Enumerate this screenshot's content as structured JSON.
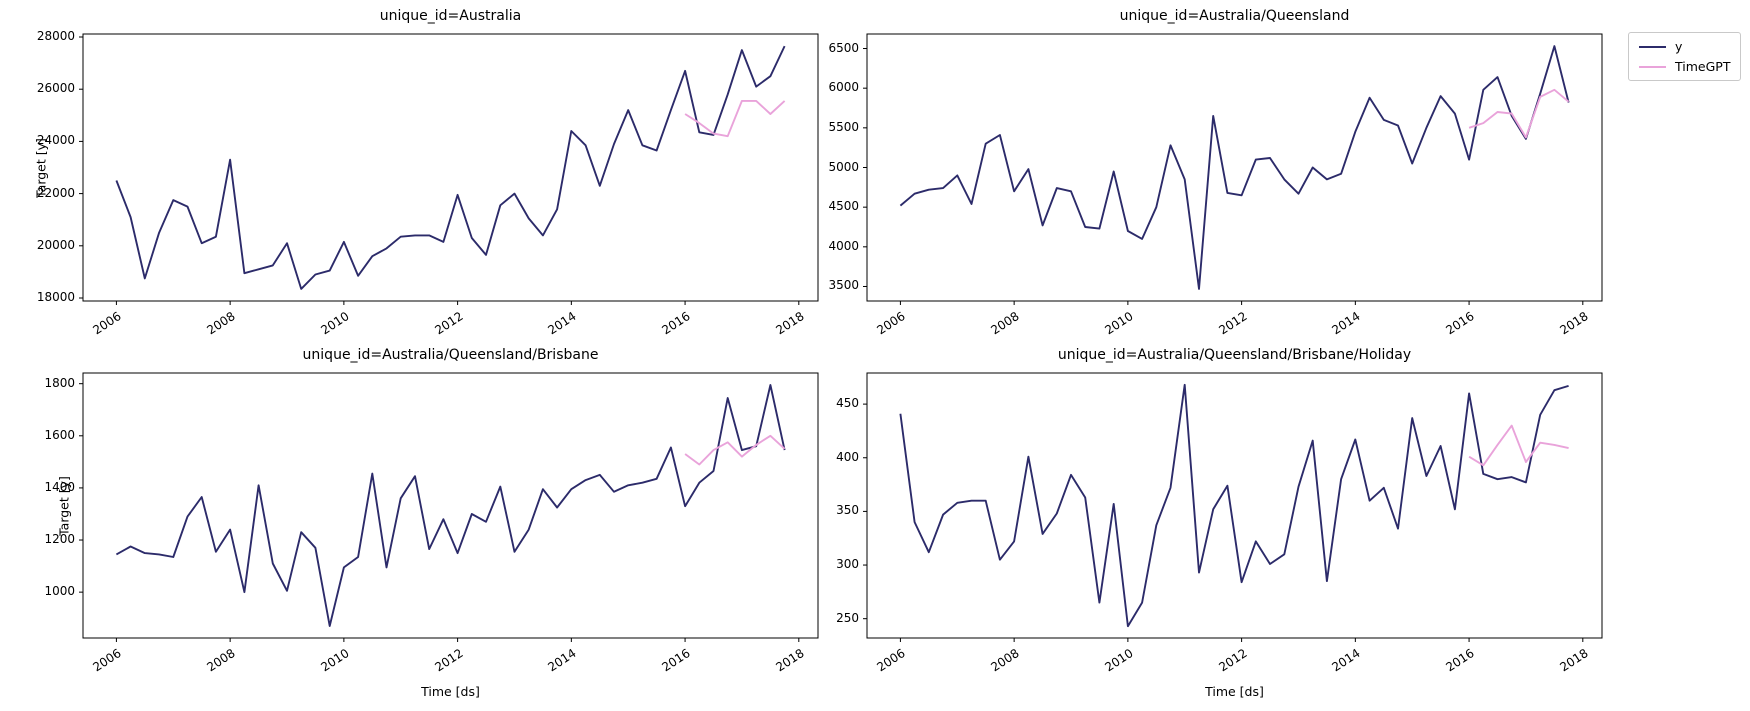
{
  "figure": {
    "background": "#ffffff",
    "type": "matplotlib-multipanel-line-figure"
  },
  "legend": {
    "position": "upper-right-outside",
    "items": [
      {
        "label": "y",
        "color": "#2c2b6a"
      },
      {
        "label": "TimeGPT",
        "color": "#e9a3da"
      }
    ]
  },
  "chart_data": [
    {
      "type": "line",
      "title": "unique_id=Australia",
      "xlabel": "",
      "ylabel": "Target [y]",
      "grid": false,
      "xlim": [
        2005.4125,
        2018.3375
      ],
      "ylim": [
        17885,
        28115
      ],
      "xticks": [
        2006,
        2008,
        2010,
        2012,
        2014,
        2016,
        2018
      ],
      "yticks": [
        18000,
        20000,
        22000,
        24000,
        26000,
        28000
      ],
      "series": [
        {
          "name": "y",
          "color": "#2c2b6a",
          "x_start": 2006.0,
          "x_step": 0.25,
          "values": [
            22500,
            21100,
            18750,
            20500,
            21750,
            21500,
            20100,
            20350,
            23300,
            18950,
            19100,
            19250,
            20100,
            18350,
            18900,
            19050,
            20150,
            18850,
            19600,
            19900,
            20350,
            20400,
            20400,
            20150,
            21950,
            20300,
            19650,
            21550,
            22000,
            21050,
            20400,
            21400,
            24400,
            23850,
            22300,
            23900,
            25200,
            23850,
            23650,
            25200,
            26700,
            24350,
            24250,
            25800,
            27500,
            26100,
            26500,
            27650
          ]
        },
        {
          "name": "TimeGPT",
          "color": "#e9a3da",
          "x_start": 2016.0,
          "x_step": 0.25,
          "values": [
            25050,
            24700,
            24300,
            24200,
            25550,
            25550,
            25050,
            25550
          ]
        }
      ]
    },
    {
      "type": "line",
      "title": "unique_id=Australia/Queensland",
      "xlabel": "",
      "ylabel": "",
      "grid": false,
      "xlim": [
        2005.4125,
        2018.3375
      ],
      "ylim": [
        3317,
        6683
      ],
      "xticks": [
        2006,
        2008,
        2010,
        2012,
        2014,
        2016,
        2018
      ],
      "yticks": [
        3500,
        4000,
        4500,
        5000,
        5500,
        6000,
        6500
      ],
      "series": [
        {
          "name": "y",
          "color": "#2c2b6a",
          "x_start": 2006.0,
          "x_step": 0.25,
          "values": [
            4520,
            4670,
            4720,
            4740,
            4900,
            4540,
            5300,
            5410,
            4700,
            4980,
            4270,
            4740,
            4700,
            4250,
            4230,
            4950,
            4200,
            4100,
            4500,
            5280,
            4850,
            3470,
            5650,
            4680,
            4650,
            5100,
            5120,
            4850,
            4670,
            5000,
            4850,
            4920,
            5450,
            5880,
            5600,
            5530,
            5050,
            5500,
            5900,
            5680,
            5100,
            5980,
            6140,
            5650,
            5360,
            5930,
            6530,
            5820
          ]
        },
        {
          "name": "TimeGPT",
          "color": "#e9a3da",
          "x_start": 2016.0,
          "x_step": 0.25,
          "values": [
            5500,
            5560,
            5700,
            5680,
            5380,
            5890,
            5980,
            5830
          ]
        }
      ]
    },
    {
      "type": "line",
      "title": "unique_id=Australia/Queensland/Brisbane",
      "xlabel": "Time [ds]",
      "ylabel": "Target [y]",
      "grid": false,
      "xlim": [
        2005.4125,
        2018.3375
      ],
      "ylim": [
        824,
        1841
      ],
      "xticks": [
        2006,
        2008,
        2010,
        2012,
        2014,
        2016,
        2018
      ],
      "yticks": [
        1000,
        1200,
        1400,
        1600,
        1800
      ],
      "series": [
        {
          "name": "y",
          "color": "#2c2b6a",
          "x_start": 2006.0,
          "x_step": 0.25,
          "values": [
            1145,
            1175,
            1150,
            1145,
            1135,
            1290,
            1365,
            1155,
            1240,
            1000,
            1410,
            1110,
            1005,
            1230,
            1170,
            870,
            1095,
            1135,
            1455,
            1095,
            1360,
            1445,
            1165,
            1280,
            1150,
            1300,
            1270,
            1405,
            1155,
            1240,
            1395,
            1325,
            1395,
            1430,
            1450,
            1385,
            1410,
            1420,
            1435,
            1555,
            1330,
            1420,
            1465,
            1745,
            1545,
            1560,
            1795,
            1545
          ]
        },
        {
          "name": "TimeGPT",
          "color": "#e9a3da",
          "x_start": 2016.0,
          "x_step": 0.25,
          "values": [
            1530,
            1490,
            1545,
            1575,
            1520,
            1565,
            1600,
            1550
          ]
        }
      ]
    },
    {
      "type": "line",
      "title": "unique_id=Australia/Queensland/Brisbane/Holiday",
      "xlabel": "Time [ds]",
      "ylabel": "",
      "grid": false,
      "xlim": [
        2005.4125,
        2018.3375
      ],
      "ylim": [
        232,
        479
      ],
      "xticks": [
        2006,
        2008,
        2010,
        2012,
        2014,
        2016,
        2018
      ],
      "yticks": [
        250,
        300,
        350,
        400,
        450
      ],
      "series": [
        {
          "name": "y",
          "color": "#2c2b6a",
          "x_start": 2006.0,
          "x_step": 0.25,
          "values": [
            441,
            340,
            312,
            347,
            358,
            360,
            360,
            305,
            322,
            401,
            329,
            348,
            384,
            363,
            265,
            357,
            243,
            265,
            337,
            372,
            468,
            293,
            352,
            374,
            284,
            322,
            301,
            310,
            373,
            416,
            285,
            380,
            417,
            360,
            372,
            334,
            437,
            383,
            411,
            352,
            460,
            385,
            380,
            382,
            377,
            440,
            463,
            467
          ]
        },
        {
          "name": "TimeGPT",
          "color": "#e9a3da",
          "x_start": 2016.0,
          "x_step": 0.25,
          "values": [
            401,
            393,
            412,
            430,
            396,
            414,
            412,
            409
          ]
        }
      ]
    }
  ]
}
